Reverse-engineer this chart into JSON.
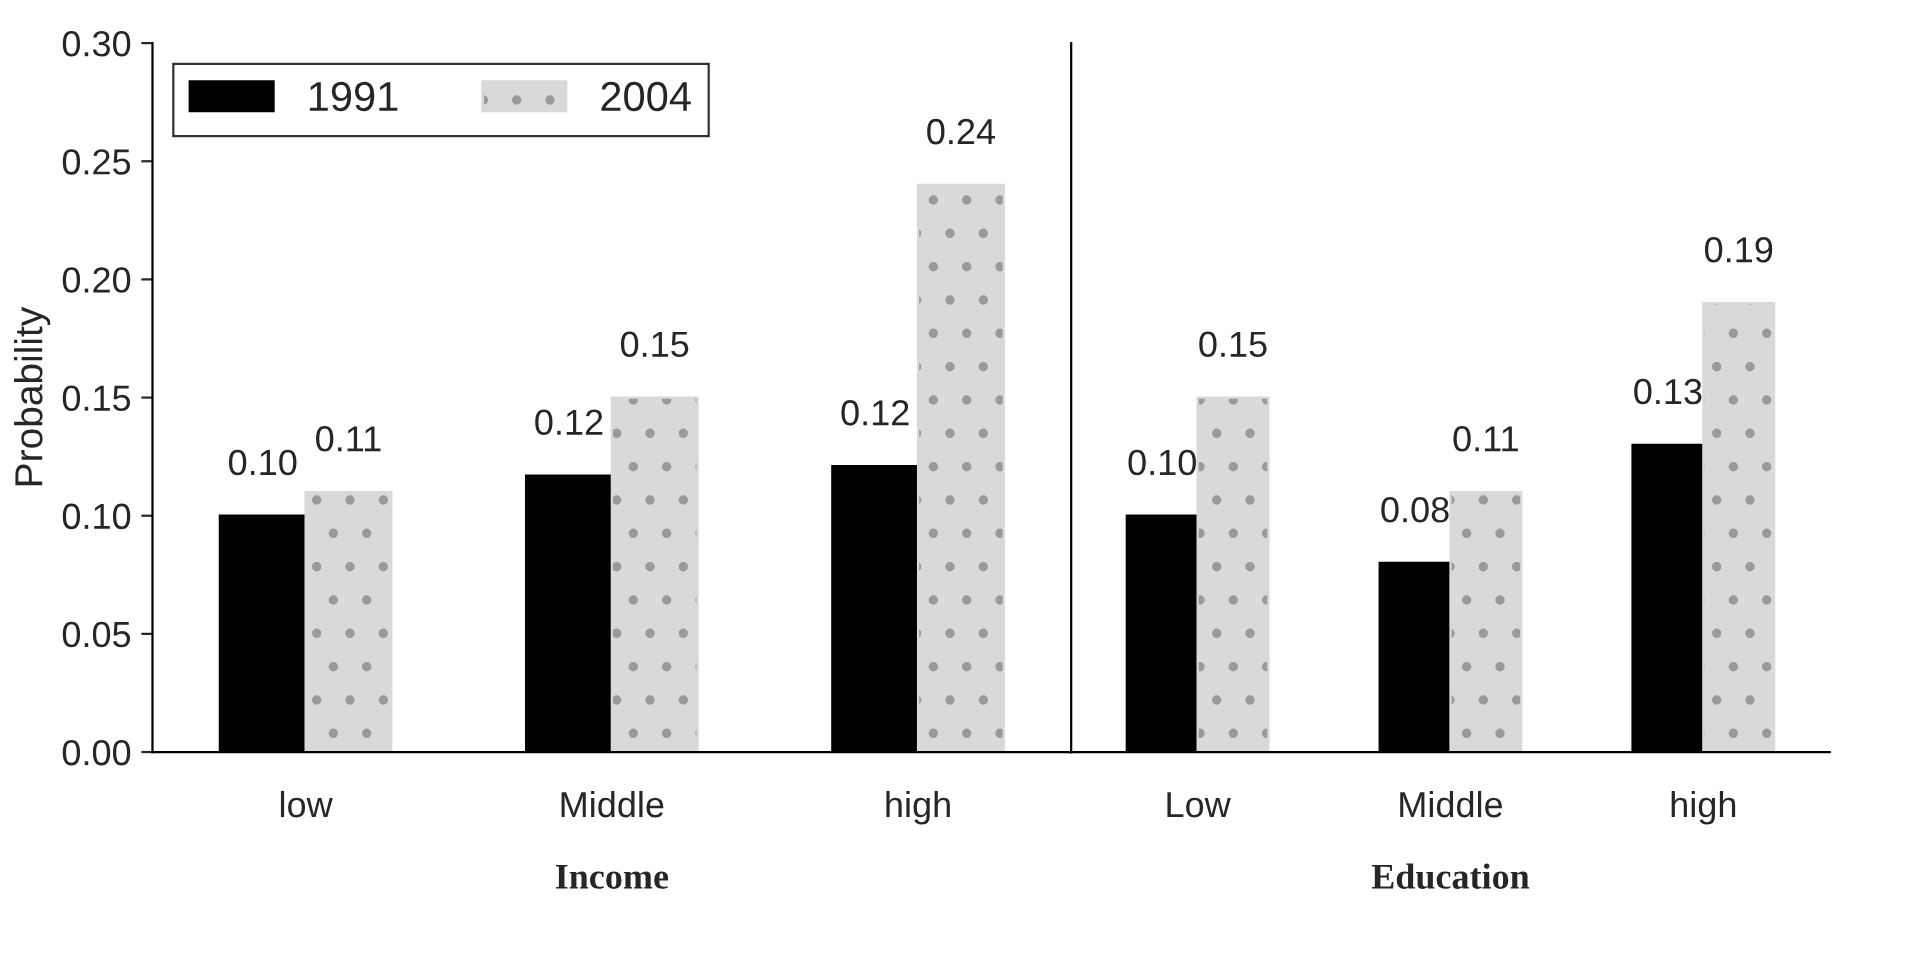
{
  "chart_data": [
    {
      "type": "bar",
      "ylabel": "Probability",
      "xlabel": "Income",
      "categories": [
        "low",
        "Middle",
        "high"
      ],
      "ylim": [
        0,
        0.3
      ],
      "yticks": [
        {
          "value": 0,
          "label": "0.00"
        },
        {
          "value": 0.05,
          "label": "0.05"
        },
        {
          "value": 0.1,
          "label": "0.10"
        },
        {
          "value": 0.15,
          "label": "0.15"
        },
        {
          "value": 0.2,
          "label": "0.20"
        },
        {
          "value": 0.25,
          "label": "0.25"
        },
        {
          "value": 0.3,
          "label": "0.30"
        }
      ],
      "legend": "top left",
      "series": [
        {
          "name": "1991",
          "color": "#000000",
          "values": [
            0.1,
            0.117,
            0.121
          ],
          "value_labels": [
            "0.10",
            "0.12",
            "0.12"
          ]
        },
        {
          "name": "2004",
          "color": "#d9d9d9",
          "values": [
            0.11,
            0.15,
            0.24
          ],
          "value_labels": [
            "0.11",
            "0.15",
            "0.24"
          ]
        }
      ]
    },
    {
      "type": "bar",
      "xlabel": "Education",
      "categories": [
        "Low",
        "Middle",
        "high"
      ],
      "ylim": [
        0,
        0.3
      ],
      "tick_labels": "x",
      "series": [
        {
          "color": "#000000",
          "values": [
            0.1,
            0.08,
            0.13
          ],
          "value_labels": [
            "0.10",
            "0.08",
            "0.13"
          ]
        },
        {
          "color": "#d9d9d9",
          "values": [
            0.15,
            0.11,
            0.19
          ],
          "value_labels": [
            "0.15",
            "0.11",
            "0.19"
          ]
        }
      ]
    }
  ]
}
